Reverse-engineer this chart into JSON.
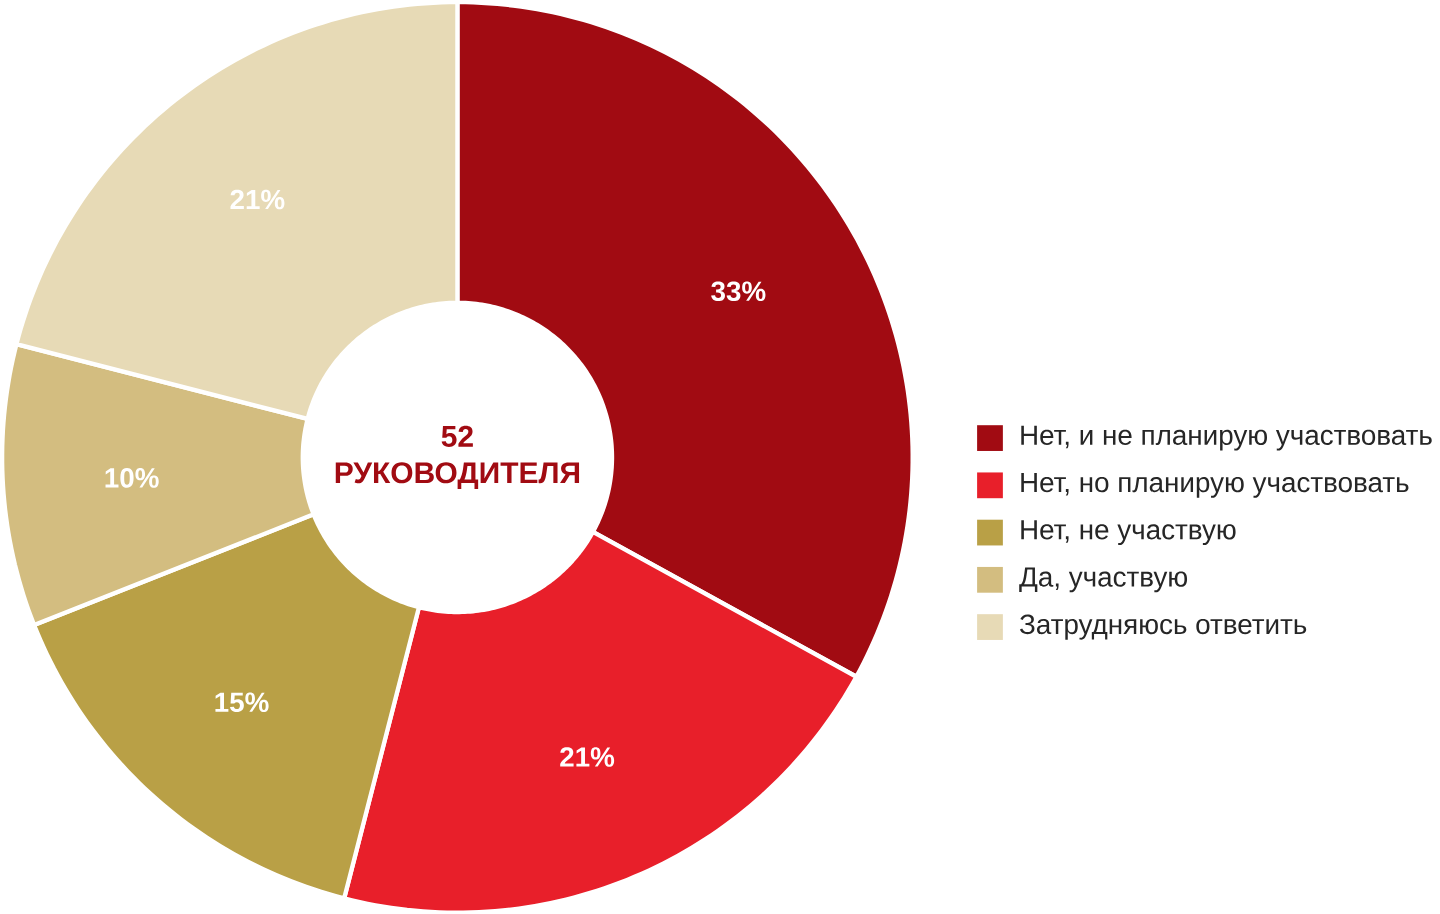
{
  "chart_data": {
    "type": "donut",
    "categories": [
      "Нет, и не планирую участвовать",
      "Нет, но планирую участвовать",
      "Нет, не участвую",
      "Да, участвую",
      "Затрудняюсь ответить"
    ],
    "values": [
      33,
      21,
      15,
      10,
      21
    ],
    "colors": [
      "#a10b12",
      "#e81f2a",
      "#b9a046",
      "#d3bd80",
      "#e7dab6"
    ],
    "value_labels": [
      "33%",
      "21%",
      "15%",
      "10%",
      "21%"
    ],
    "annotations": [
      "52 РУКОВОДИТЕЛЯ"
    ],
    "legend": "right"
  }
}
